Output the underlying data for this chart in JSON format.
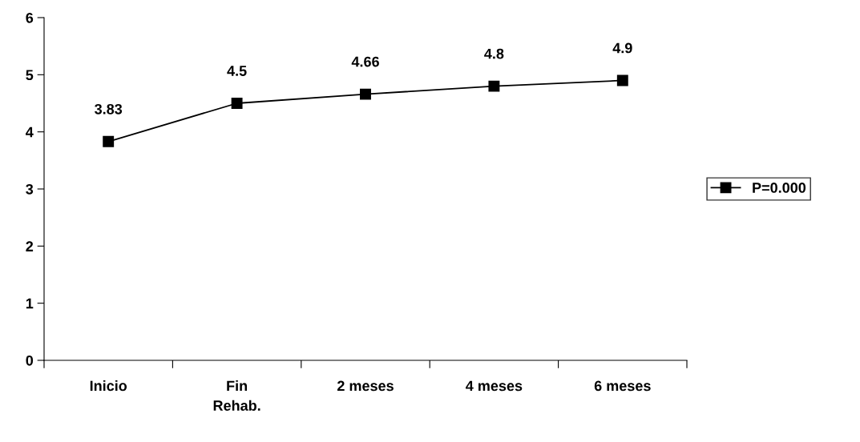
{
  "chart_data": {
    "type": "line",
    "categories": [
      "Inicio",
      "Fin\nRehab.",
      "2 meses",
      "4 meses",
      "6 meses"
    ],
    "series": [
      {
        "name": "P=0.000",
        "color": "#000000",
        "values": [
          3.83,
          4.5,
          4.66,
          4.8,
          4.9
        ]
      }
    ],
    "ylim": [
      0,
      6
    ],
    "yticks": [
      0,
      1,
      2,
      3,
      4,
      5,
      6
    ],
    "data_labels": true,
    "legend": "right",
    "grid": false,
    "marker": "square",
    "line_style": "solid"
  }
}
